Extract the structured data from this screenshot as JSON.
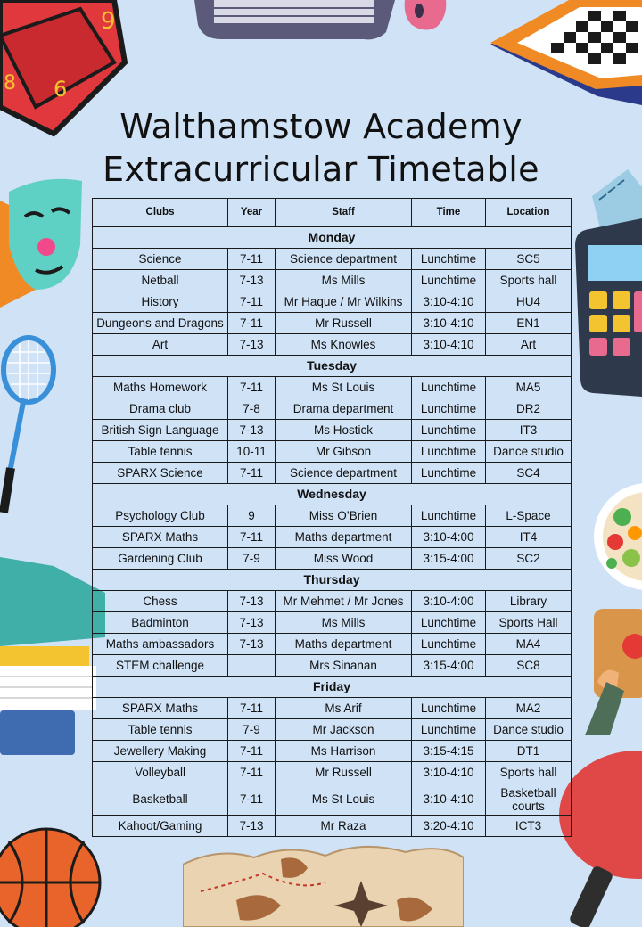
{
  "title": {
    "line1": "Walthamstow Academy",
    "line2": "Extracurricular Timetable"
  },
  "table": {
    "headers": [
      "Clubs",
      "Year",
      "Staff",
      "Time",
      "Location"
    ],
    "days": [
      {
        "day": "Monday",
        "rows": [
          [
            "Science",
            "7-11",
            "Science department",
            "Lunchtime",
            "SC5"
          ],
          [
            "Netball",
            "7-13",
            "Ms Mills",
            "Lunchtime",
            "Sports hall"
          ],
          [
            "History",
            "7-11",
            "Mr Haque / Mr Wilkins",
            "3:10-4:10",
            "HU4"
          ],
          [
            "Dungeons and Dragons",
            "7-11",
            "Mr Russell",
            "3:10-4:10",
            "EN1"
          ],
          [
            "Art",
            "7-13",
            "Ms Knowles",
            "3:10-4:10",
            "Art"
          ]
        ]
      },
      {
        "day": "Tuesday",
        "rows": [
          [
            "Maths Homework",
            "7-11",
            "Ms St Louis",
            "Lunchtime",
            "MA5"
          ],
          [
            "Drama club",
            "7-8",
            "Drama department",
            "Lunchtime",
            "DR2"
          ],
          [
            "British Sign Language",
            "7-13",
            "Ms Hostick",
            "Lunchtime",
            "IT3"
          ],
          [
            "Table tennis",
            "10-11",
            "Mr Gibson",
            "Lunchtime",
            "Dance studio"
          ],
          [
            "SPARX Science",
            "7-11",
            "Science department",
            "Lunchtime",
            "SC4"
          ]
        ]
      },
      {
        "day": "Wednesday",
        "rows": [
          [
            "Psychology Club",
            "9",
            "Miss O’Brien",
            "Lunchtime",
            "L-Space"
          ],
          [
            "SPARX Maths",
            "7-11",
            "Maths department",
            "3:10-4:00",
            "IT4"
          ],
          [
            "Gardening Club",
            "7-9",
            "Miss Wood",
            "3:15-4:00",
            "SC2"
          ]
        ]
      },
      {
        "day": "Thursday",
        "rows": [
          [
            "Chess",
            "7-13",
            "Mr Mehmet / Mr Jones",
            "3:10-4:00",
            "Library"
          ],
          [
            "Badminton",
            "7-13",
            "Ms Mills",
            "Lunchtime",
            "Sports Hall"
          ],
          [
            "Maths ambassadors",
            "7-13",
            "Maths department",
            "Lunchtime",
            "MA4"
          ],
          [
            "STEM challenge",
            "",
            "Mrs Sinanan",
            "3:15-4:00",
            "SC8"
          ]
        ]
      },
      {
        "day": "Friday",
        "rows": [
          [
            "SPARX Maths",
            "7-11",
            "Ms Arif",
            "Lunchtime",
            "MA2"
          ],
          [
            "Table tennis",
            "7-9",
            "Mr Jackson",
            "Lunchtime",
            "Dance studio"
          ],
          [
            "Jewellery Making",
            "7-11",
            "Ms Harrison",
            "3:15-4:15",
            "DT1"
          ],
          [
            "Volleyball",
            "7-11",
            "Mr Russell",
            "3:10-4:10",
            "Sports hall"
          ],
          [
            "Basketball",
            "7-11",
            "Ms St Louis",
            "3:10-4:10",
            "Basketball courts"
          ],
          [
            "Kahoot/Gaming",
            "7-13",
            "Mr Raza",
            "3:20-4:10",
            "ICT3"
          ]
        ]
      }
    ]
  },
  "decorations": [
    "dice-icon",
    "keyboard-icon",
    "mouse-icon",
    "chessboard-icon",
    "theatre-mask-icon",
    "badminton-racket-icon",
    "calculator-icon",
    "ruler-icon",
    "salad-bowl-icon",
    "books-icon",
    "painting-hand-icon",
    "basketball-icon",
    "treasure-map-icon",
    "table-tennis-bat-icon"
  ]
}
